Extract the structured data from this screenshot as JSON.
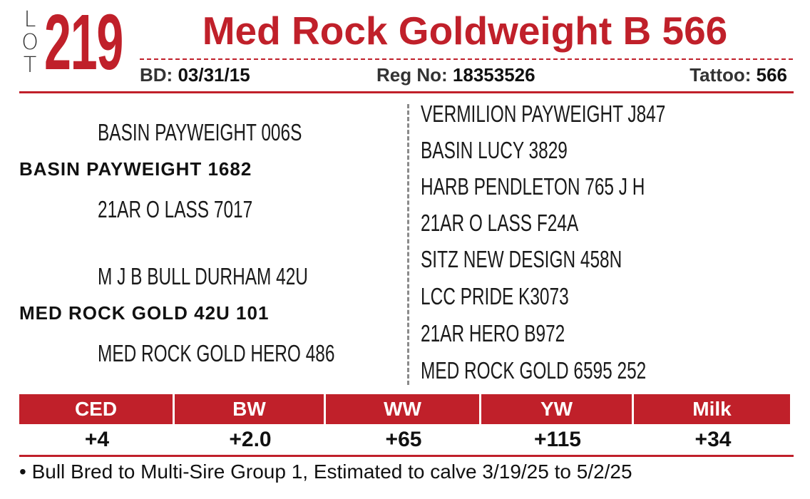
{
  "lot": {
    "letters": [
      "L",
      "O",
      "T"
    ],
    "number": "219"
  },
  "title": "Med Rock Goldweight B 566",
  "info": {
    "bd_label": "BD:",
    "bd_value": "03/31/15",
    "reg_label": "Reg No:",
    "reg_value": "18353526",
    "tattoo_label": "Tattoo:",
    "tattoo_value": "566"
  },
  "pedigree": {
    "sire": "BASIN PAYWEIGHT 1682",
    "sire_sire": "BASIN PAYWEIGHT 006S",
    "sire_dam": "21AR O LASS 7017",
    "dam": "MED ROCK GOLD 42U 101",
    "dam_sire": "M J B BULL DURHAM 42U",
    "dam_dam": "MED ROCK GOLD HERO 486",
    "great_grandparents": [
      "VERMILION PAYWEIGHT J847",
      "BASIN LUCY 3829",
      "HARB PENDLETON 765 J H",
      "21AR O LASS F24A",
      "SITZ NEW DESIGN 458N",
      "LCC PRIDE K3073",
      "21AR HERO B972",
      "MED ROCK GOLD 6595 252"
    ]
  },
  "epd": {
    "headers": [
      "CED",
      "BW",
      "WW",
      "YW",
      "Milk"
    ],
    "values": [
      "+4",
      "+2.0",
      "+65",
      "+115",
      "+34"
    ]
  },
  "note": "• Bull Bred to Multi-Sire Group 1, Estimated to calve 3/19/25 to 5/2/25",
  "colors": {
    "accent": "#c0202a",
    "divider": "#8a8a8a"
  }
}
